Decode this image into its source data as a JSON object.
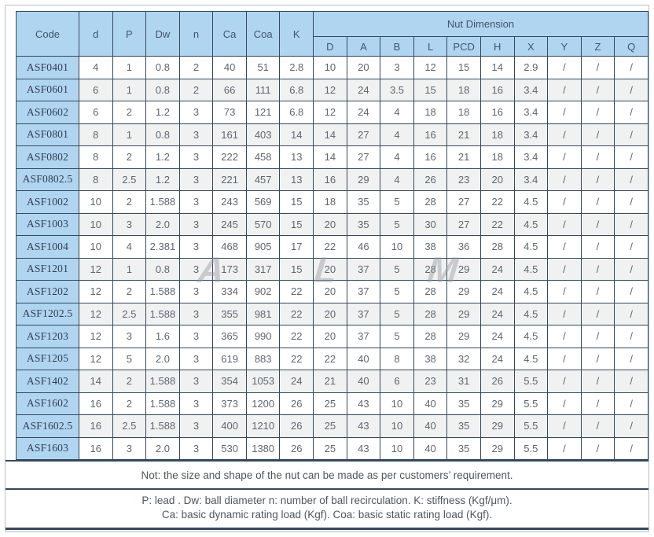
{
  "table": {
    "headers": {
      "code": "Code",
      "main": [
        "d",
        "P",
        "Dw",
        "n",
        "Ca",
        "Coa",
        "K"
      ],
      "nut_group": "Nut Dimension",
      "nut": [
        "D",
        "A",
        "B",
        "L",
        "PCD",
        "H",
        "X",
        "Y",
        "Z",
        "Q"
      ]
    },
    "rows": [
      {
        "code": "ASF0401",
        "shade": false,
        "values": [
          "4",
          "1",
          "0.8",
          "2",
          "40",
          "51",
          "2.8",
          "10",
          "20",
          "3",
          "12",
          "15",
          "14",
          "2.9",
          "/",
          "/",
          "/"
        ]
      },
      {
        "code": "ASF0601",
        "shade": true,
        "values": [
          "6",
          "1",
          "0.8",
          "2",
          "66",
          "111",
          "6.8",
          "12",
          "24",
          "3.5",
          "15",
          "18",
          "16",
          "3.4",
          "/",
          "/",
          "/"
        ]
      },
      {
        "code": "ASF0602",
        "shade": false,
        "values": [
          "6",
          "2",
          "1.2",
          "3",
          "73",
          "121",
          "6.8",
          "12",
          "24",
          "4",
          "18",
          "18",
          "16",
          "3.4",
          "/",
          "/",
          "/"
        ]
      },
      {
        "code": "ASF0801",
        "shade": true,
        "values": [
          "8",
          "1",
          "0.8",
          "3",
          "161",
          "403",
          "14",
          "14",
          "27",
          "4",
          "16",
          "21",
          "18",
          "3.4",
          "/",
          "/",
          "/"
        ]
      },
      {
        "code": "ASF0802",
        "shade": false,
        "values": [
          "8",
          "2",
          "1.2",
          "3",
          "222",
          "458",
          "13",
          "14",
          "27",
          "4",
          "16",
          "21",
          "18",
          "3.4",
          "/",
          "/",
          "/"
        ]
      },
      {
        "code": "ASF0802.5",
        "shade": true,
        "values": [
          "8",
          "2.5",
          "1.2",
          "3",
          "221",
          "457",
          "13",
          "16",
          "29",
          "4",
          "26",
          "23",
          "20",
          "3.4",
          "/",
          "/",
          "/"
        ]
      },
      {
        "code": "ASF1002",
        "shade": false,
        "values": [
          "10",
          "2",
          "1.588",
          "3",
          "243",
          "569",
          "15",
          "18",
          "35",
          "5",
          "28",
          "27",
          "22",
          "4.5",
          "/",
          "/",
          "/"
        ]
      },
      {
        "code": "ASF1003",
        "shade": true,
        "values": [
          "10",
          "3",
          "2.0",
          "3",
          "245",
          "570",
          "15",
          "20",
          "35",
          "5",
          "30",
          "27",
          "22",
          "4.5",
          "/",
          "/",
          "/"
        ]
      },
      {
        "code": "ASF1004",
        "shade": false,
        "values": [
          "10",
          "4",
          "2.381",
          "3",
          "468",
          "905",
          "17",
          "22",
          "46",
          "10",
          "38",
          "36",
          "28",
          "4.5",
          "/",
          "/",
          "/"
        ]
      },
      {
        "code": "ASF1201",
        "shade": true,
        "values": [
          "12",
          "1",
          "0.8",
          "3",
          "173",
          "317",
          "15",
          "20",
          "37",
          "5",
          "28",
          "29",
          "24",
          "4.5",
          "/",
          "/",
          "/"
        ]
      },
      {
        "code": "ASF1202",
        "shade": false,
        "values": [
          "12",
          "2",
          "1.588",
          "3",
          "334",
          "902",
          "22",
          "20",
          "37",
          "5",
          "28",
          "29",
          "24",
          "4.5",
          "/",
          "/",
          "/"
        ]
      },
      {
        "code": "ASF1202.5",
        "shade": true,
        "values": [
          "12",
          "2.5",
          "1.588",
          "3",
          "355",
          "981",
          "22",
          "20",
          "37",
          "5",
          "28",
          "29",
          "24",
          "4.5",
          "/",
          "/",
          "/"
        ]
      },
      {
        "code": "ASF1203",
        "shade": false,
        "values": [
          "12",
          "3",
          "1.6",
          "3",
          "365",
          "990",
          "22",
          "20",
          "37",
          "5",
          "28",
          "29",
          "24",
          "4.5",
          "/",
          "/",
          "/"
        ]
      },
      {
        "code": "ASF1205",
        "shade": false,
        "values": [
          "12",
          "5",
          "2.0",
          "3",
          "619",
          "883",
          "22",
          "22",
          "40",
          "8",
          "38",
          "32",
          "24",
          "4.5",
          "/",
          "/",
          "/"
        ]
      },
      {
        "code": "ASF1402",
        "shade": true,
        "values": [
          "14",
          "2",
          "1.588",
          "3",
          "354",
          "1053",
          "24",
          "21",
          "40",
          "6",
          "23",
          "31",
          "26",
          "5.5",
          "/",
          "/",
          "/"
        ]
      },
      {
        "code": "ASF1602",
        "shade": false,
        "values": [
          "16",
          "2",
          "1.588",
          "3",
          "373",
          "1200",
          "26",
          "25",
          "43",
          "10",
          "40",
          "35",
          "29",
          "5.5",
          "/",
          "/",
          "/"
        ]
      },
      {
        "code": "ASF1602.5",
        "shade": true,
        "values": [
          "16",
          "2.5",
          "1.588",
          "3",
          "400",
          "1210",
          "26",
          "25",
          "43",
          "10",
          "40",
          "35",
          "29",
          "5.5",
          "/",
          "/",
          "/"
        ]
      },
      {
        "code": "ASF1603",
        "shade": false,
        "values": [
          "16",
          "3",
          "2.0",
          "3",
          "530",
          "1380",
          "26",
          "25",
          "43",
          "10",
          "40",
          "35",
          "29",
          "5.5",
          "/",
          "/",
          "/"
        ]
      }
    ]
  },
  "notes": {
    "note1": "Not: the size and shape of the nut can be made as per customers’ requirement.",
    "note2_line1": "P: lead . Dw: ball diameter n: number of ball recirculation. K: stiffness (Kgf/μm).",
    "note2_line2": "Ca: basic dynamic rating load (Kgf). Coa: basic static rating load (Kgf)."
  },
  "watermark": {
    "letters": [
      "A",
      "L",
      "M"
    ]
  },
  "colors": {
    "header_blue": "#b0d5f1",
    "grid_border": "#35495c",
    "alt_row": "#f0f1f1",
    "value_text": "#5d6771",
    "header_text": "#44546a"
  }
}
